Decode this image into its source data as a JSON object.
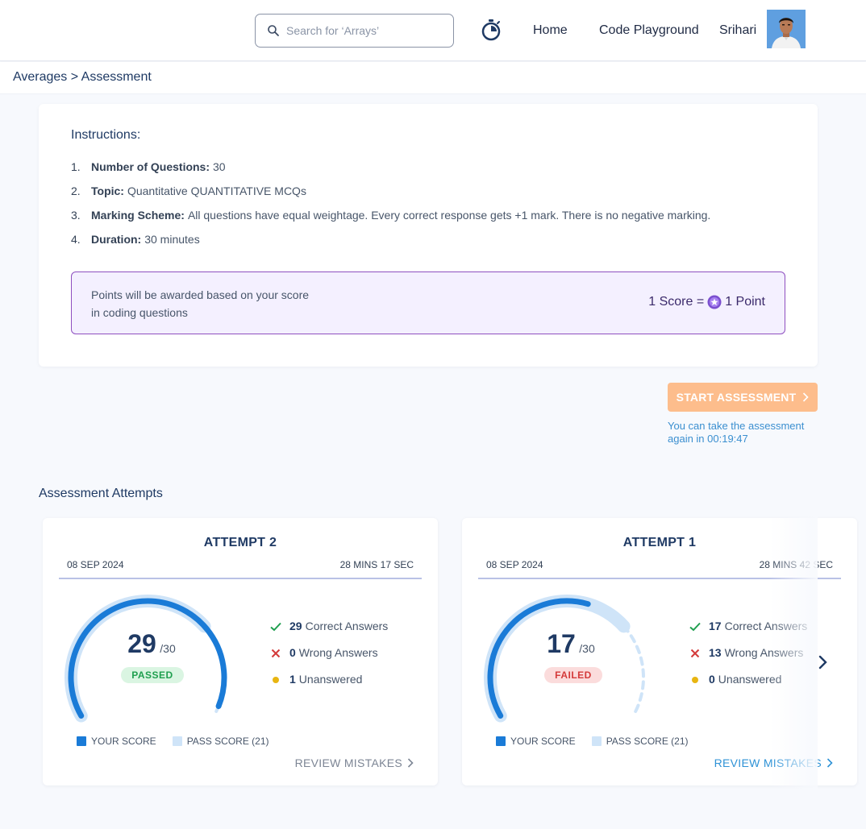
{
  "header": {
    "search_placeholder": "Search for ‘Arrays’",
    "nav": {
      "home": "Home",
      "playground": "Code Playground"
    },
    "user_name": "Srihari"
  },
  "breadcrumb": "Averages > Assessment",
  "instructions": {
    "title": "Instructions:",
    "items": [
      {
        "num": "1.",
        "label": "Number of Questions:",
        "value": "30"
      },
      {
        "num": "2.",
        "label": "Topic:",
        "value": "Quantitative QUANTITATIVE MCQs"
      },
      {
        "num": "3.",
        "label": "Marking Scheme:",
        "value": "All questions have equal weightage. Every correct response gets +1 mark. There is no negative marking."
      },
      {
        "num": "4.",
        "label": "Duration:",
        "value": "30 minutes"
      }
    ],
    "points_note": "Points will be awarded based on your score in coding questions",
    "points_rate_prefix": "1 Score =",
    "points_rate_suffix": "1 Point"
  },
  "start": {
    "button_label": "START ASSESSMENT",
    "retake_note": "You can take the assessment again in 00:19:47"
  },
  "attempts": {
    "title": "Assessment Attempts",
    "legend": {
      "your_score": "YOUR SCORE",
      "pass_score": "PASS SCORE (21)"
    },
    "items": [
      {
        "title": "ATTEMPT 2",
        "date": "08 SEP 2024",
        "duration": "28 MINS 17 SEC",
        "score": "29",
        "total": "/30",
        "status": "PASSED",
        "correct": "29",
        "correct_label": "Correct Answers",
        "wrong": "0",
        "wrong_label": "Wrong Answers",
        "unanswered": "1",
        "unanswered_label": "Unanswered",
        "review": "REVIEW MISTAKES",
        "score_value": 29,
        "max_value": 30,
        "pass_value": 21
      },
      {
        "title": "ATTEMPT 1",
        "date": "08 SEP 2024",
        "duration": "28 MINS 42 SEC",
        "score": "17",
        "total": "/30",
        "status": "FAILED",
        "correct": "17",
        "correct_label": "Correct Answers",
        "wrong": "13",
        "wrong_label": "Wrong Answers",
        "unanswered": "0",
        "unanswered_label": "Unanswered",
        "review": "REVIEW MISTAKES",
        "score_value": 17,
        "max_value": 30,
        "pass_value": 21
      }
    ]
  },
  "colors": {
    "accent_blue": "#1a7bd7",
    "pass_blue": "#cfe4f8",
    "start_orange": "#fdbd8c",
    "passed_green": "#1f9f4f",
    "failed_red": "#d43a3a",
    "points_purple": "#8e4fc0"
  }
}
